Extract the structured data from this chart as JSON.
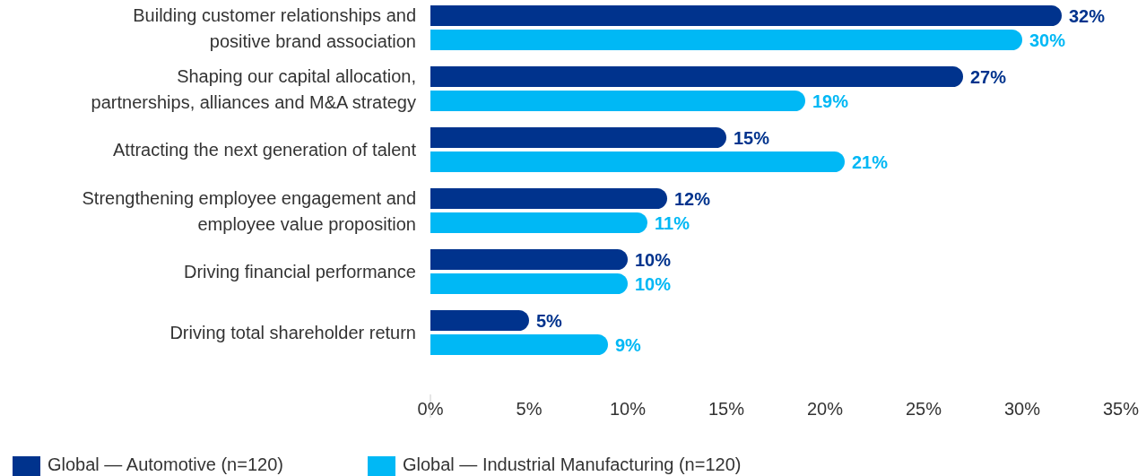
{
  "chart_data": {
    "type": "bar",
    "orientation": "horizontal",
    "categories": [
      "Building customer relationships and\npositive brand association",
      "Shaping our capital allocation,\npartnerships, alliances and M&A strategy",
      "Attracting the next generation of talent",
      "Strengthening employee engagement and\nemployee value proposition",
      "Driving financial performance",
      "Driving total shareholder return"
    ],
    "series": [
      {
        "name": "Global — Automotive (n=120)",
        "color": "#00338d",
        "values": [
          32,
          27,
          15,
          12,
          10,
          5
        ],
        "value_labels": [
          "32%",
          "27%",
          "15%",
          "12%",
          "10%",
          "5%"
        ]
      },
      {
        "name": "Global — Industrial Manufacturing (n=120)",
        "color": "#00b8f5",
        "values": [
          30,
          19,
          21,
          11,
          10,
          9
        ],
        "value_labels": [
          "30%",
          "19%",
          "21%",
          "11%",
          "10%",
          "9%"
        ]
      }
    ],
    "xlim": [
      0,
      35
    ],
    "xticks": [
      {
        "value": 0,
        "label": "0%"
      },
      {
        "value": 5,
        "label": "5%"
      },
      {
        "value": 10,
        "label": "10%"
      },
      {
        "value": 15,
        "label": "15%"
      },
      {
        "value": 20,
        "label": "20%"
      },
      {
        "value": 25,
        "label": "25%"
      },
      {
        "value": 30,
        "label": "30%"
      },
      {
        "value": 35,
        "label": "35%"
      }
    ],
    "legend": "bottom left"
  }
}
